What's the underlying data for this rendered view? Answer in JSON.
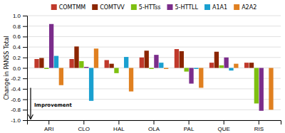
{
  "chart_data": {
    "type": "bar",
    "categories": [
      "ARI",
      "CLO",
      "HAL",
      "OLA",
      "PAL",
      "QUE",
      "RIS"
    ],
    "series": [
      {
        "name": "COMTMM",
        "color": "#C0392B",
        "values": [
          0.17,
          0.17,
          0.15,
          0.2,
          0.36,
          0.1,
          0.1
        ]
      },
      {
        "name": "COMTVV",
        "color": "#8B2500",
        "values": [
          0.19,
          0.41,
          0.08,
          0.33,
          0.32,
          0.31,
          0.1
        ]
      },
      {
        "name": "5-HTTss",
        "color": "#7EC010",
        "values": [
          -0.02,
          0.13,
          -0.1,
          -0.02,
          -0.07,
          0.05,
          -0.68
        ]
      },
      {
        "name": "5-HTTLL",
        "color": "#7B2D8B",
        "values": [
          0.84,
          0.02,
          0.0,
          0.25,
          -0.3,
          0.2,
          -0.82
        ]
      },
      {
        "name": "A1A1",
        "color": "#1AA0D0",
        "values": [
          0.23,
          -0.63,
          0.21,
          0.1,
          -0.02,
          -0.05,
          0.0
        ]
      },
      {
        "name": "A2A2",
        "color": "#E08020",
        "values": [
          -0.33,
          0.37,
          -0.45,
          -0.02,
          -0.38,
          0.08,
          -0.8
        ]
      }
    ],
    "ylabel": "Change in PANSS Total",
    "annotation": "Improvement",
    "ylim": [
      -1.0,
      1.0
    ],
    "yticks": [
      {
        "value": -1.0,
        "label": "-1.0"
      },
      {
        "value": -0.8,
        "label": "-0.8"
      },
      {
        "value": -0.6,
        "label": "-0.6"
      },
      {
        "value": -0.4,
        "label": "-0.4"
      },
      {
        "value": -0.2,
        "label": "-0.2"
      },
      {
        "value": 0.0,
        "label": "0.0"
      },
      {
        "value": 0.2,
        "label": "0.2"
      },
      {
        "value": 0.4,
        "label": "0.4"
      },
      {
        "value": 0.6,
        "label": "0.6"
      },
      {
        "value": 0.8,
        "label": "0.8"
      },
      {
        "value": 1.0,
        "label": "1.0"
      }
    ],
    "grid": true,
    "legend": "top"
  }
}
